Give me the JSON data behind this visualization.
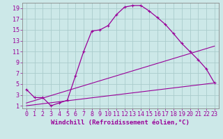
{
  "xlabel": "Windchill (Refroidissement éolien,°C)",
  "background_color": "#cce8e8",
  "grid_color": "#aacccc",
  "line_color": "#990099",
  "xlim": [
    -0.5,
    23.5
  ],
  "ylim": [
    0.5,
    20.0
  ],
  "xticks": [
    0,
    1,
    2,
    3,
    4,
    5,
    6,
    7,
    8,
    9,
    10,
    11,
    12,
    13,
    14,
    15,
    16,
    17,
    18,
    19,
    20,
    21,
    22,
    23
  ],
  "yticks": [
    1,
    3,
    5,
    7,
    9,
    11,
    13,
    15,
    17,
    19
  ],
  "line1_x": [
    0,
    1,
    2,
    3,
    4,
    5,
    6,
    7,
    8,
    9,
    10,
    11,
    12,
    13,
    14,
    15,
    16,
    17,
    18,
    19,
    20,
    21,
    22,
    23
  ],
  "line1_y": [
    4,
    2.5,
    2.5,
    1,
    1.5,
    2,
    6.5,
    11,
    14.8,
    15,
    15.8,
    17.8,
    19.2,
    19.5,
    19.5,
    18.5,
    17.3,
    16,
    14.3,
    12.5,
    11,
    9.5,
    7.8,
    5.2
  ],
  "line2_x": [
    0,
    23
  ],
  "line2_y": [
    1.0,
    5.2
  ],
  "line3_x": [
    0,
    23
  ],
  "line3_y": [
    1.5,
    12.0
  ],
  "font_family": "monospace",
  "font_size": 6,
  "xlabel_fontsize": 6.5,
  "marker": "+"
}
